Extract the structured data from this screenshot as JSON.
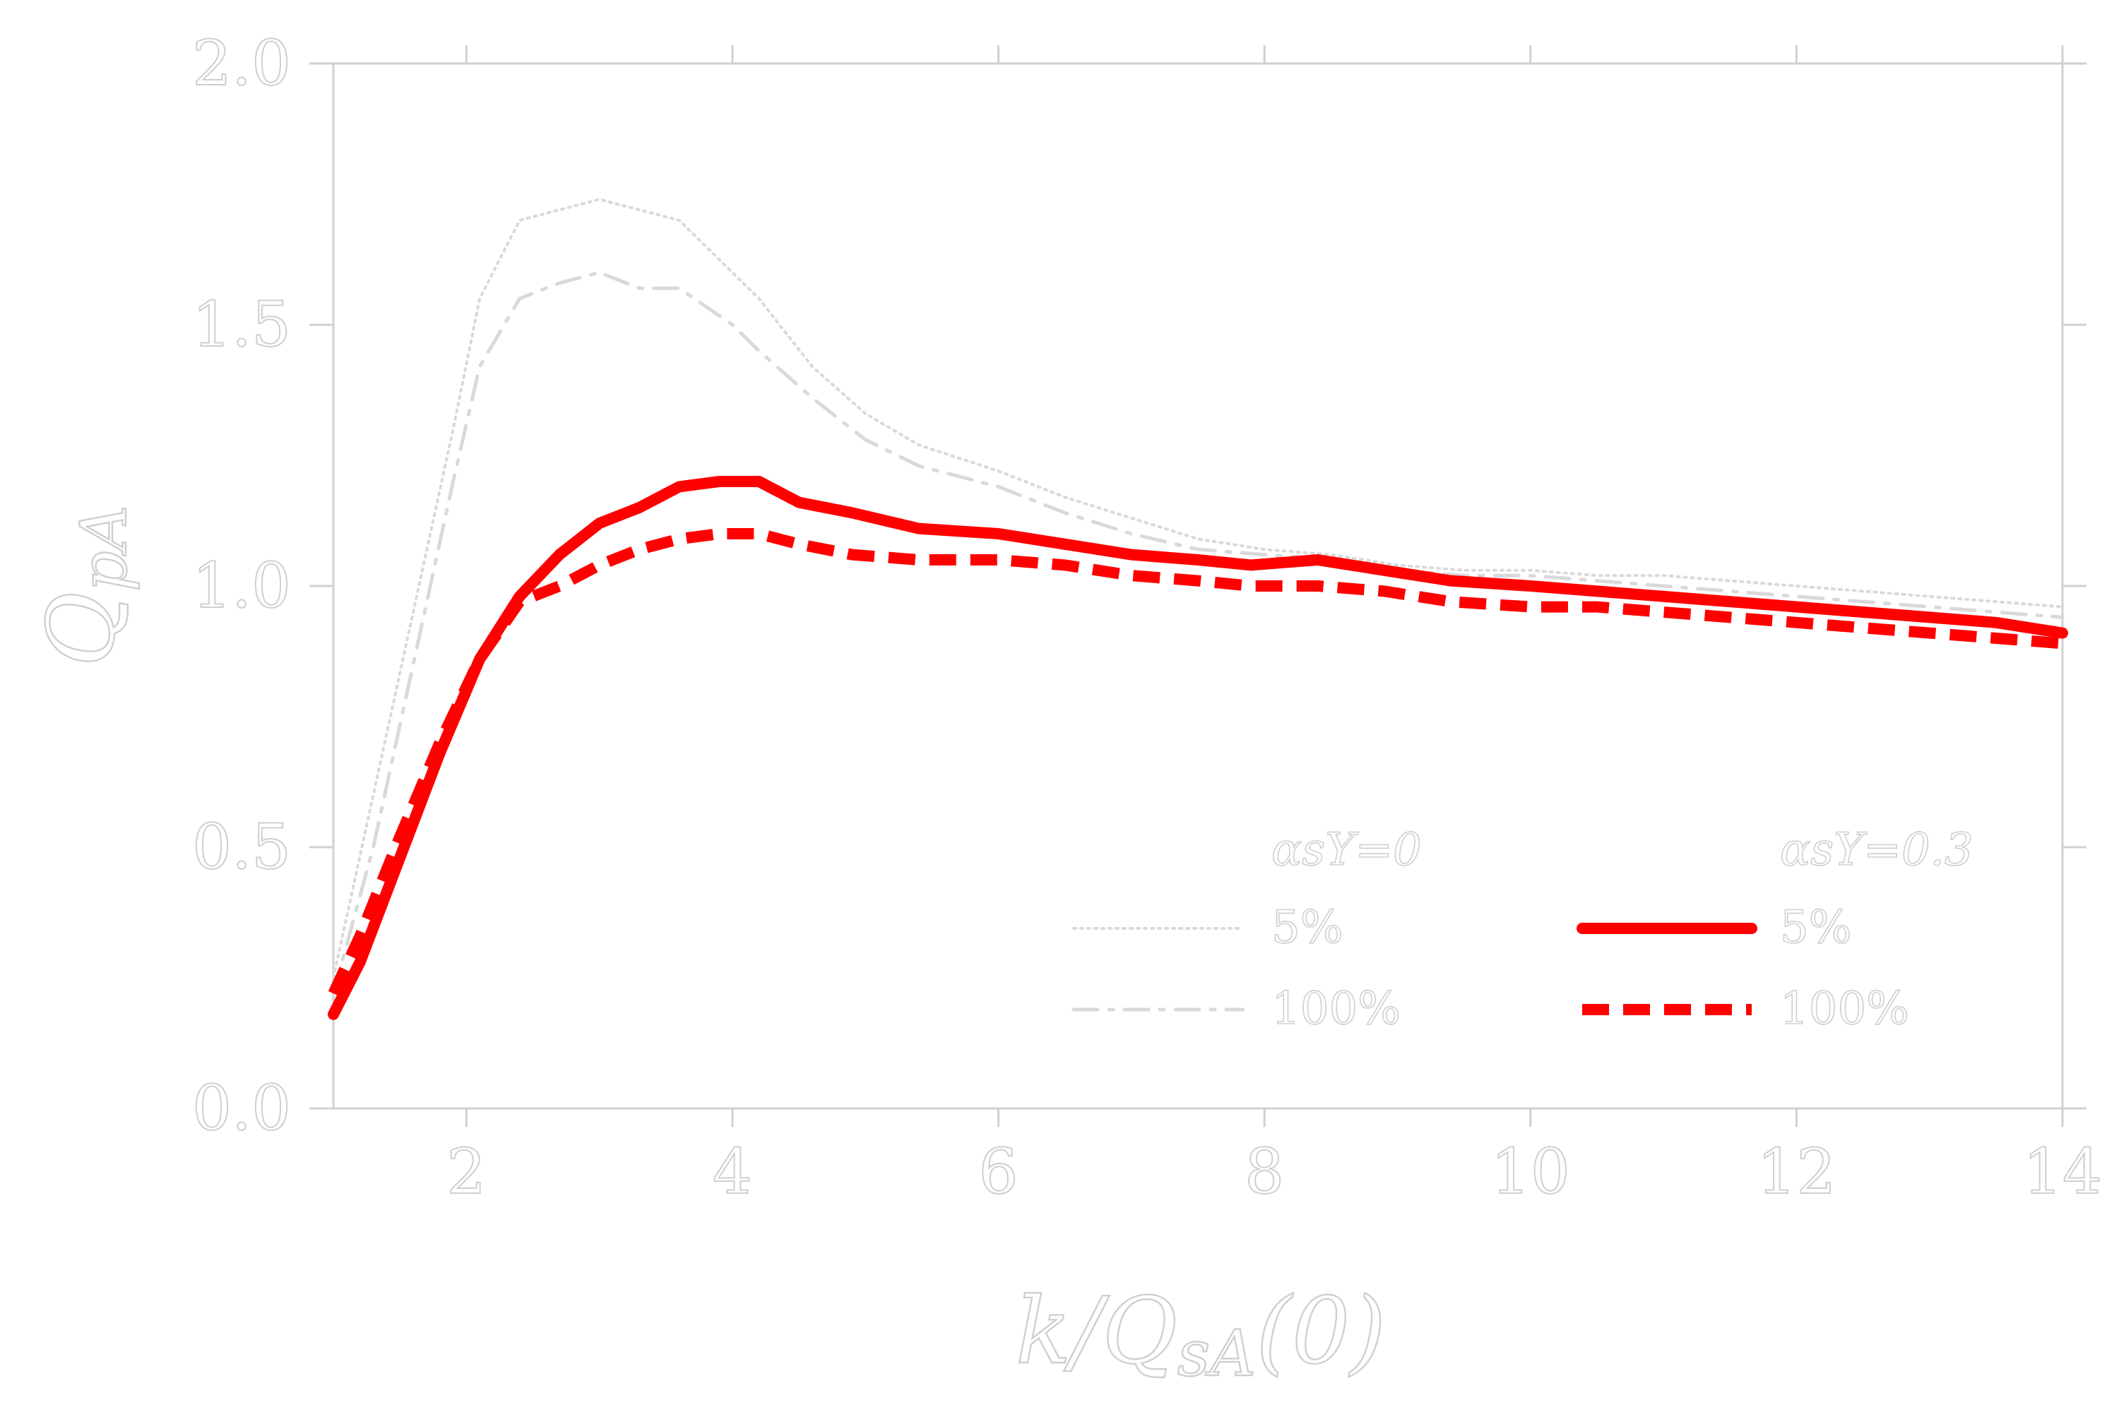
{
  "chart_data": {
    "type": "line",
    "xlabel": "k/Q_sA(0)",
    "ylabel": "Q_pA",
    "xlim": [
      1.0,
      14.0
    ],
    "ylim": [
      0.0,
      2.0
    ],
    "xticks": [
      "2",
      "4",
      "6",
      "8",
      "10",
      "12",
      "14"
    ],
    "yticks": [
      "0.0",
      "0.5",
      "1.0",
      "1.5",
      "2.0"
    ],
    "grid": false,
    "legend": {
      "placement": "bottom-right",
      "group_titles": [
        "αsY=0",
        "αsY=0.3"
      ],
      "entries": [
        {
          "label": "5%",
          "group": "αsY=0"
        },
        {
          "label": "100%",
          "group": "αsY=0"
        },
        {
          "label": "5%",
          "group": "αsY=0.3"
        },
        {
          "label": "100%",
          "group": "αsY=0.3"
        }
      ]
    },
    "series": [
      {
        "group": "αsY=0",
        "label": "5%",
        "color": "#d9d9d9",
        "style": "dotted",
        "x": [
          1.0,
          1.3,
          1.6,
          1.9,
          2.1,
          2.4,
          2.7,
          3.0,
          3.3,
          3.6,
          4.0,
          4.2,
          4.6,
          5.0,
          5.4,
          6.0,
          6.5,
          7.0,
          7.5,
          8.0,
          8.5,
          9.0,
          9.5,
          10.0,
          10.5,
          11.0,
          11.5,
          12.0,
          12.5,
          13.0,
          13.5,
          14.0
        ],
        "y": [
          0.25,
          0.6,
          0.95,
          1.3,
          1.55,
          1.7,
          1.72,
          1.74,
          1.72,
          1.7,
          1.6,
          1.55,
          1.42,
          1.33,
          1.27,
          1.22,
          1.17,
          1.13,
          1.09,
          1.07,
          1.06,
          1.04,
          1.03,
          1.03,
          1.02,
          1.02,
          1.01,
          1.0,
          0.99,
          0.98,
          0.97,
          0.96
        ]
      },
      {
        "group": "αsY=0",
        "label": "100%",
        "color": "#d9d9d9",
        "style": "dash-dot",
        "x": [
          1.0,
          1.3,
          1.6,
          1.9,
          2.1,
          2.4,
          2.7,
          3.0,
          3.3,
          3.6,
          4.0,
          4.2,
          4.6,
          5.0,
          5.4,
          6.0,
          6.5,
          7.0,
          7.5,
          8.0,
          8.5,
          9.0,
          9.5,
          10.0,
          10.5,
          11.0,
          11.5,
          12.0,
          12.5,
          13.0,
          13.5,
          14.0
        ],
        "y": [
          0.22,
          0.5,
          0.85,
          1.2,
          1.42,
          1.55,
          1.58,
          1.6,
          1.57,
          1.57,
          1.5,
          1.45,
          1.36,
          1.28,
          1.23,
          1.19,
          1.14,
          1.1,
          1.07,
          1.06,
          1.05,
          1.03,
          1.02,
          1.02,
          1.01,
          1.0,
          0.99,
          0.98,
          0.97,
          0.96,
          0.95,
          0.94
        ]
      },
      {
        "group": "αsY=0.3",
        "label": "5%",
        "color": "#ff0000",
        "style": "solid",
        "x": [
          1.0,
          1.2,
          1.5,
          1.8,
          2.1,
          2.4,
          2.7,
          3.0,
          3.3,
          3.6,
          3.9,
          4.2,
          4.5,
          4.9,
          5.4,
          6.0,
          6.5,
          7.0,
          7.5,
          7.9,
          8.4,
          8.9,
          9.4,
          10.0,
          10.5,
          11.0,
          11.5,
          12.0,
          12.5,
          13.0,
          13.5,
          14.0
        ],
        "y": [
          0.18,
          0.28,
          0.48,
          0.68,
          0.86,
          0.98,
          1.06,
          1.12,
          1.15,
          1.19,
          1.2,
          1.2,
          1.16,
          1.14,
          1.11,
          1.1,
          1.08,
          1.06,
          1.05,
          1.04,
          1.05,
          1.03,
          1.01,
          1.0,
          0.99,
          0.98,
          0.97,
          0.96,
          0.95,
          0.94,
          0.93,
          0.91
        ]
      },
      {
        "group": "αsY=0.3",
        "label": "100%",
        "color": "#ff0000",
        "style": "dashed",
        "x": [
          1.0,
          1.2,
          1.5,
          1.8,
          2.1,
          2.4,
          2.7,
          3.0,
          3.3,
          3.6,
          3.9,
          4.2,
          4.5,
          4.9,
          5.4,
          6.0,
          6.5,
          7.0,
          7.5,
          7.9,
          8.4,
          8.9,
          9.4,
          10.0,
          10.5,
          11.0,
          11.5,
          12.0,
          12.5,
          13.0,
          13.5,
          14.0
        ],
        "y": [
          0.22,
          0.33,
          0.52,
          0.7,
          0.86,
          0.97,
          1.0,
          1.04,
          1.07,
          1.09,
          1.1,
          1.1,
          1.08,
          1.06,
          1.05,
          1.05,
          1.04,
          1.02,
          1.01,
          1.0,
          1.0,
          0.99,
          0.97,
          0.96,
          0.96,
          0.95,
          0.94,
          0.93,
          0.92,
          0.91,
          0.9,
          0.89
        ]
      }
    ]
  }
}
